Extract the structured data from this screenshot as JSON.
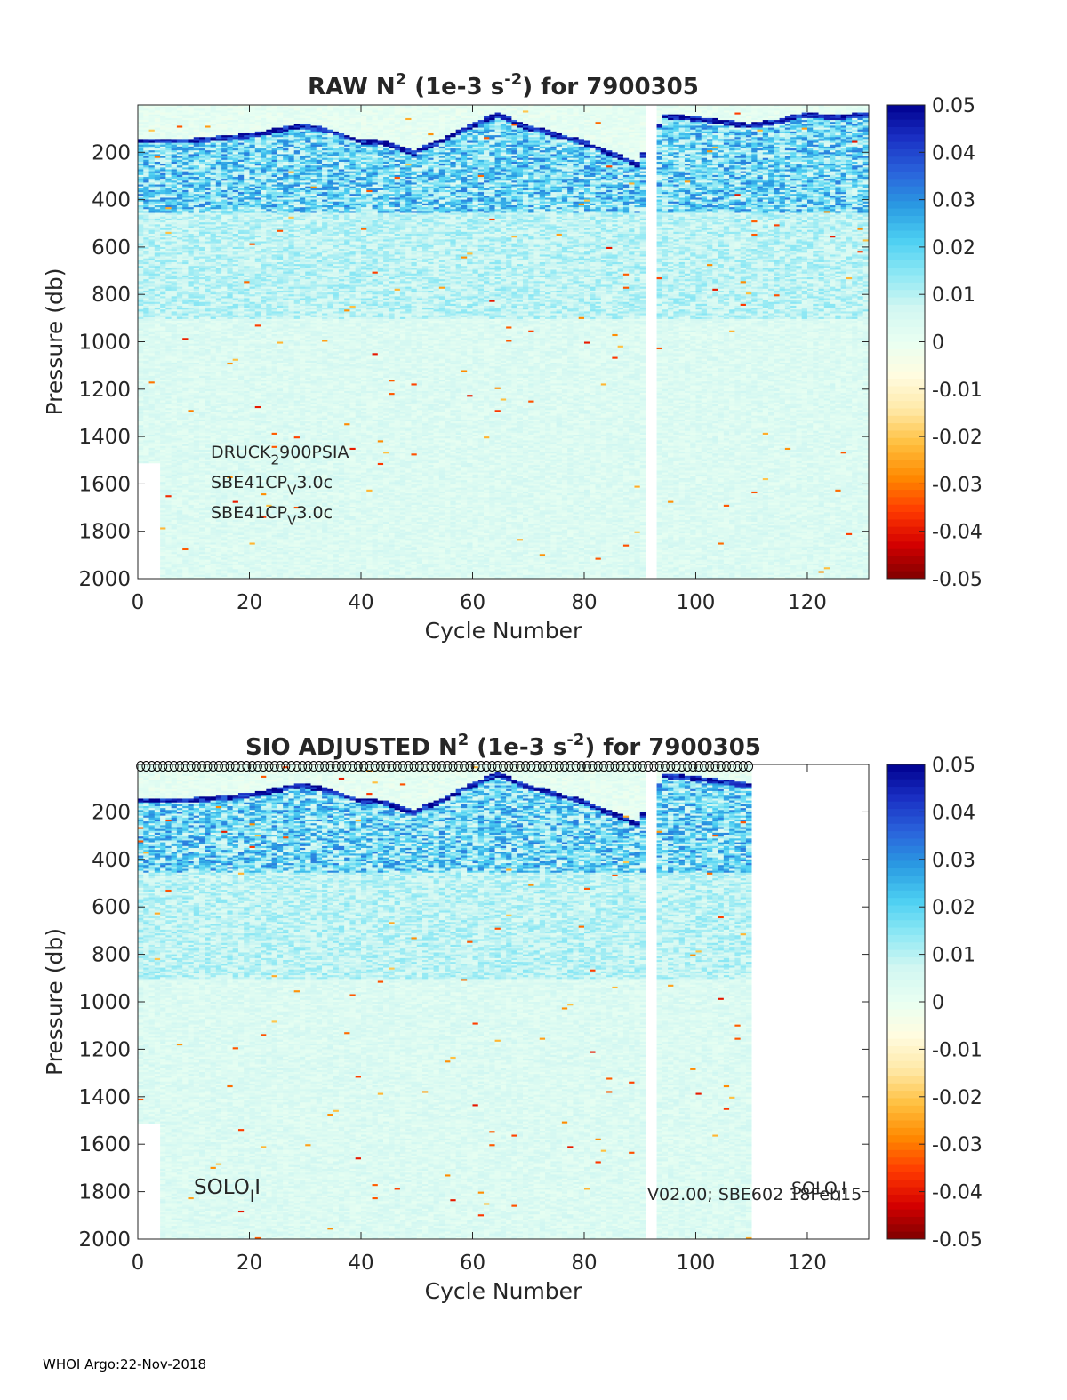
{
  "footer": "WHOI Argo:22-Nov-2018",
  "colors": {
    "colormap": [
      "#7f0000",
      "#d40000",
      "#ff3a00",
      "#ff8a00",
      "#ffc040",
      "#ffe9a8",
      "#fffce0",
      "#e8fff2",
      "#d2f7f2",
      "#8ee8f4",
      "#4ccff2",
      "#2a9be2",
      "#2a64dc",
      "#1a30c4",
      "#00008f"
    ],
    "axis": "#262626",
    "marker": "#000000"
  },
  "chart_data": [
    {
      "type": "heatmap",
      "title_parts": {
        "pre": "RAW N",
        "sup1": "2",
        "mid": " (1e-3 s",
        "sup2": "-2",
        "post": ") for 7900305"
      },
      "xlabel": "Cycle Number",
      "ylabel": "Pressure (db)",
      "xlim": [
        0,
        131
      ],
      "ylim": [
        0,
        2000
      ],
      "y_reversed": true,
      "xticks": [
        "0",
        "20",
        "40",
        "60",
        "80",
        "100",
        "120"
      ],
      "yticks": [
        "200",
        "400",
        "600",
        "800",
        "1000",
        "1200",
        "1400",
        "1600",
        "1800",
        "2000"
      ],
      "clim": [
        -0.05,
        0.05
      ],
      "colorbar_ticks": [
        "0.05",
        "0.04",
        "0.03",
        "0.02",
        "0.01",
        "0",
        "-0.01",
        "-0.02",
        "-0.03",
        "-0.04",
        "-0.05"
      ],
      "cycles_with_data": [
        1,
        131
      ],
      "gap_cycles": [
        92,
        93
      ],
      "mixed_layer_depth": [
        [
          1,
          150
        ],
        [
          10,
          150
        ],
        [
          20,
          130
        ],
        [
          30,
          85
        ],
        [
          35,
          110
        ],
        [
          40,
          150
        ],
        [
          45,
          160
        ],
        [
          50,
          200
        ],
        [
          55,
          150
        ],
        [
          60,
          90
        ],
        [
          65,
          40
        ],
        [
          70,
          90
        ],
        [
          75,
          120
        ],
        [
          80,
          155
        ],
        [
          85,
          200
        ],
        [
          90,
          250
        ],
        [
          95,
          45
        ],
        [
          100,
          55
        ],
        [
          105,
          70
        ],
        [
          110,
          85
        ],
        [
          115,
          70
        ],
        [
          120,
          40
        ],
        [
          125,
          50
        ],
        [
          131,
          40
        ]
      ],
      "annotations": [
        {
          "parts": [
            "DRUCK",
            "2",
            "900PSIA"
          ]
        },
        {
          "parts": [
            "SBE41CP",
            "V",
            "3.0c"
          ]
        },
        {
          "parts": [
            "SBE41CP",
            "V",
            "3.0c"
          ]
        }
      ]
    },
    {
      "type": "heatmap",
      "title_parts": {
        "pre": "SIO  ADJUSTED N",
        "sup1": "2",
        "mid": " (1e-3 s",
        "sup2": "-2",
        "post": ") for 7900305"
      },
      "xlabel": "Cycle Number",
      "ylabel": "Pressure (db)",
      "xlim": [
        0,
        131
      ],
      "ylim": [
        0,
        2000
      ],
      "y_reversed": true,
      "xticks": [
        "0",
        "20",
        "40",
        "60",
        "80",
        "100",
        "120"
      ],
      "yticks": [
        "200",
        "400",
        "600",
        "800",
        "1000",
        "1200",
        "1400",
        "1600",
        "1800",
        "2000"
      ],
      "clim": [
        -0.05,
        0.05
      ],
      "colorbar_ticks": [
        "0.05",
        "0.04",
        "0.03",
        "0.02",
        "0.01",
        "0",
        "-0.01",
        "-0.02",
        "-0.03",
        "-0.04",
        "-0.05"
      ],
      "cycles_with_data": [
        1,
        110
      ],
      "gap_cycles": [
        92,
        93
      ],
      "qc_marker_cycles": [
        1,
        110
      ],
      "mixed_layer_depth": [
        [
          1,
          150
        ],
        [
          10,
          150
        ],
        [
          20,
          130
        ],
        [
          30,
          85
        ],
        [
          35,
          110
        ],
        [
          40,
          150
        ],
        [
          45,
          160
        ],
        [
          50,
          200
        ],
        [
          55,
          150
        ],
        [
          60,
          90
        ],
        [
          65,
          40
        ],
        [
          70,
          90
        ],
        [
          75,
          120
        ],
        [
          80,
          155
        ],
        [
          85,
          200
        ],
        [
          90,
          250
        ],
        [
          95,
          45
        ],
        [
          100,
          55
        ],
        [
          105,
          70
        ],
        [
          110,
          85
        ]
      ],
      "annotations": [
        {
          "parts": [
            "SOLO",
            "I",
            "I"
          ]
        },
        {
          "parts": [
            "V02.00; SBE602 18Feb15"
          ]
        },
        {
          "parts": [
            "SOLO",
            "I",
            "I"
          ]
        }
      ]
    }
  ]
}
